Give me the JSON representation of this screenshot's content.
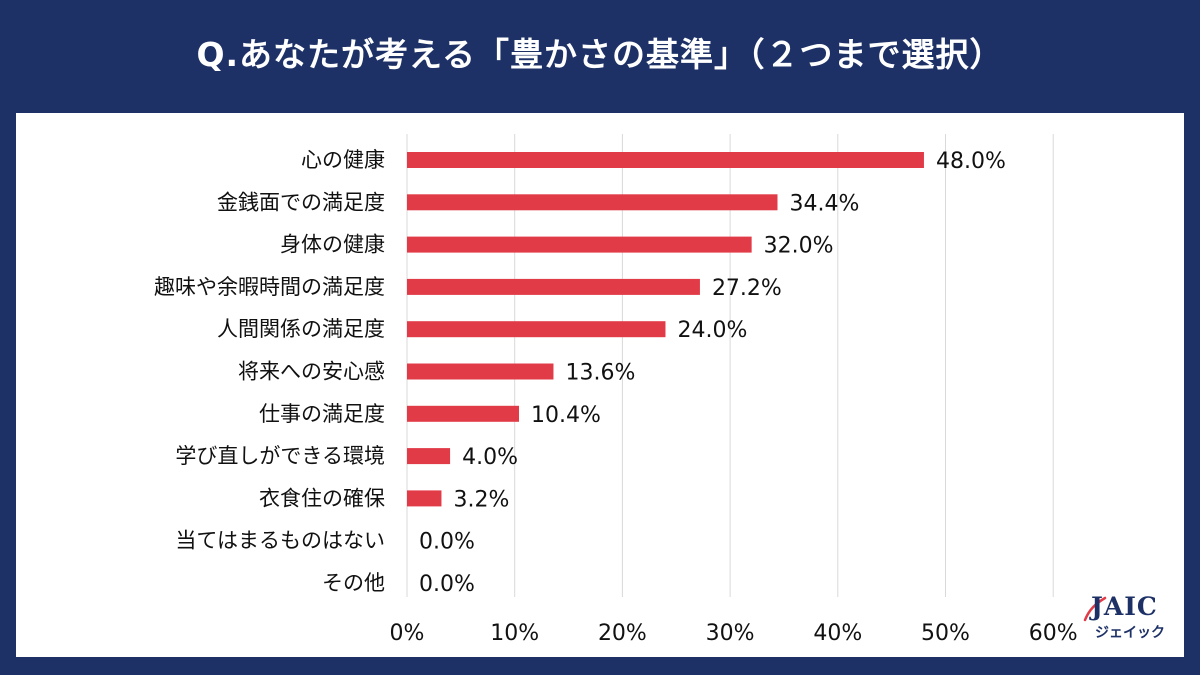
{
  "header": {
    "title": "Q.あなたが考える「豊かさの基準」（２つまで選択）"
  },
  "brand": {
    "logo_text": "JAIC",
    "logo_subtext": "ジェイック"
  },
  "colors": {
    "background": "#1d3167",
    "panel": "#ffffff",
    "bar": "#e23b48",
    "grid": "#d9d9d9",
    "text": "#111111"
  },
  "chart_data": {
    "type": "bar",
    "orientation": "horizontal",
    "title": "",
    "xlabel": "",
    "ylabel": "",
    "categories": [
      "心の健康",
      "金銭面での満足度",
      "身体の健康",
      "趣味や余暇時間の満足度",
      "人間関係の満足度",
      "将来への安心感",
      "仕事の満足度",
      "学び直しができる環境",
      "衣食住の確保",
      "当てはまるものはない",
      "その他"
    ],
    "values": [
      48.0,
      34.4,
      32.0,
      27.2,
      24.0,
      13.6,
      10.4,
      4.0,
      3.2,
      0.0,
      0.0
    ],
    "value_labels": [
      "48.0%",
      "34.4%",
      "32.0%",
      "27.2%",
      "24.0%",
      "13.6%",
      "10.4%",
      "4.0%",
      "3.2%",
      "0.0%",
      "0.0%"
    ],
    "xlim": [
      0,
      60
    ],
    "xticks": [
      0,
      10,
      20,
      30,
      40,
      50,
      60
    ],
    "xtick_labels": [
      "0%",
      "10%",
      "20%",
      "30%",
      "40%",
      "50%",
      "60%"
    ],
    "grid": true,
    "legend": "none"
  }
}
